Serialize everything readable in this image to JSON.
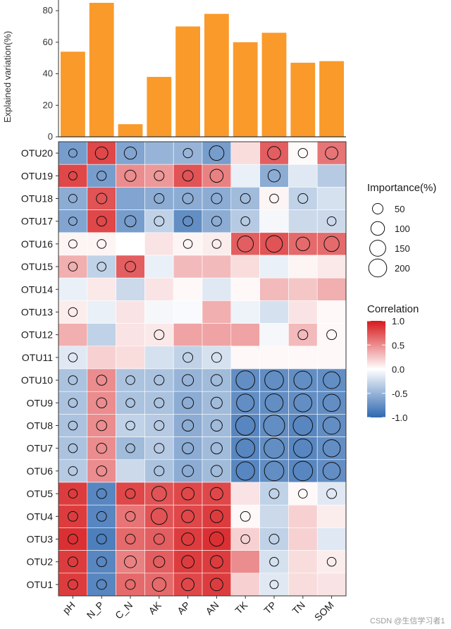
{
  "chart_data": [
    {
      "type": "bar",
      "ylabel": "Explained variation(%)",
      "ylim": [
        0,
        85
      ],
      "yticks": [
        "0",
        "20",
        "40",
        "60",
        "80"
      ],
      "categories": [
        "pH",
        "N_P",
        "C_N",
        "AK",
        "AP",
        "AN",
        "TK",
        "TP",
        "TN",
        "SOM"
      ],
      "values": [
        54,
        85,
        8,
        38,
        70,
        78,
        60,
        66,
        47,
        48
      ],
      "color": "#FA9A2A"
    },
    {
      "type": "heatmap",
      "columns": [
        "pH",
        "N_P",
        "C_N",
        "AK",
        "AP",
        "AN",
        "TK",
        "TP",
        "TN",
        "SOM"
      ],
      "rows": [
        "OTU20",
        "OTU19",
        "OTU18",
        "OTU17",
        "OTU16",
        "OTU15",
        "OTU14",
        "OTU13",
        "OTU12",
        "OTU11",
        "OTU10",
        "OTU9",
        "OTU8",
        "OTU7",
        "OTU6",
        "OTU5",
        "OTU4",
        "OTU3",
        "OTU2",
        "OTU1"
      ],
      "correlation": [
        [
          -0.65,
          0.8,
          -0.6,
          -0.5,
          -0.5,
          -0.65,
          0.15,
          0.7,
          0.02,
          0.6
        ],
        [
          0.8,
          -0.65,
          0.5,
          0.45,
          0.75,
          0.55,
          -0.1,
          -0.55,
          -0.15,
          -0.35
        ],
        [
          -0.55,
          0.75,
          -0.6,
          -0.55,
          -0.55,
          -0.55,
          -0.45,
          0.05,
          -0.3,
          -0.2
        ],
        [
          -0.6,
          0.8,
          -0.65,
          -0.3,
          -0.75,
          -0.55,
          -0.35,
          -0.05,
          -0.25,
          -0.25
        ],
        [
          0.05,
          0.05,
          0.0,
          0.12,
          0.05,
          0.08,
          0.7,
          0.75,
          0.65,
          0.65
        ],
        [
          0.35,
          -0.3,
          0.7,
          -0.1,
          0.3,
          0.3,
          0.15,
          -0.1,
          0.05,
          0.1
        ],
        [
          -0.1,
          0.1,
          -0.25,
          0.12,
          0.03,
          -0.15,
          0.03,
          0.3,
          0.25,
          0.35
        ],
        [
          0.08,
          -0.1,
          0.12,
          -0.05,
          -0.03,
          0.35,
          -0.08,
          -0.2,
          0.12,
          0.03
        ],
        [
          0.35,
          -0.3,
          0.12,
          0.1,
          0.4,
          0.4,
          0.4,
          -0.05,
          0.3,
          0.03
        ],
        [
          -0.15,
          0.2,
          0.15,
          -0.2,
          -0.3,
          -0.2,
          0.03,
          0.03,
          0.03,
          0.03
        ],
        [
          -0.4,
          0.5,
          -0.4,
          -0.4,
          -0.5,
          -0.45,
          -0.75,
          -0.75,
          -0.75,
          -0.75
        ],
        [
          -0.4,
          0.5,
          -0.4,
          -0.4,
          -0.55,
          -0.45,
          -0.75,
          -0.75,
          -0.75,
          -0.75
        ],
        [
          -0.4,
          0.5,
          -0.3,
          -0.35,
          -0.55,
          -0.45,
          -0.8,
          -0.75,
          -0.8,
          -0.75
        ],
        [
          -0.4,
          0.5,
          -0.45,
          -0.35,
          -0.55,
          -0.45,
          -0.8,
          -0.75,
          -0.8,
          -0.75
        ],
        [
          -0.35,
          0.5,
          -0.25,
          -0.4,
          -0.55,
          -0.45,
          -0.8,
          -0.75,
          -0.8,
          -0.75
        ],
        [
          0.85,
          -0.8,
          0.8,
          0.75,
          0.8,
          0.8,
          0.12,
          -0.3,
          0.03,
          -0.15
        ],
        [
          0.85,
          -0.8,
          0.6,
          0.75,
          0.8,
          0.85,
          0.03,
          -0.25,
          0.2,
          0.08
        ],
        [
          0.9,
          -0.85,
          0.65,
          0.7,
          0.85,
          0.9,
          0.2,
          -0.3,
          0.2,
          -0.15
        ],
        [
          0.85,
          -0.8,
          0.55,
          0.7,
          0.85,
          0.85,
          0.5,
          -0.2,
          0.15,
          0.08
        ],
        [
          0.85,
          -0.8,
          0.65,
          0.65,
          0.8,
          0.85,
          0.2,
          -0.15,
          0.15,
          0.12
        ]
      ],
      "importance": [
        [
          25,
          80,
          75,
          0,
          35,
          120,
          0,
          90,
          35,
          80
        ],
        [
          25,
          35,
          60,
          40,
          50,
          90,
          0,
          75,
          0,
          0
        ],
        [
          25,
          50,
          0,
          40,
          50,
          50,
          40,
          30,
          40,
          0
        ],
        [
          25,
          40,
          60,
          40,
          40,
          40,
          30,
          0,
          0,
          30
        ],
        [
          25,
          30,
          0,
          0,
          30,
          30,
          150,
          165,
          100,
          130
        ],
        [
          30,
          30,
          50,
          0,
          0,
          0,
          0,
          0,
          0,
          0
        ],
        [
          0,
          0,
          0,
          0,
          0,
          0,
          0,
          0,
          0,
          0
        ],
        [
          30,
          0,
          0,
          0,
          0,
          0,
          0,
          0,
          0,
          0
        ],
        [
          0,
          0,
          0,
          40,
          0,
          0,
          0,
          0,
          40,
          40
        ],
        [
          30,
          0,
          0,
          0,
          40,
          40,
          0,
          0,
          0,
          0
        ],
        [
          30,
          45,
          30,
          40,
          60,
          60,
          220,
          220,
          200,
          170
        ],
        [
          30,
          45,
          30,
          40,
          60,
          60,
          190,
          200,
          200,
          180
        ],
        [
          30,
          45,
          30,
          40,
          60,
          60,
          240,
          290,
          240,
          180
        ],
        [
          30,
          45,
          30,
          40,
          60,
          60,
          220,
          260,
          220,
          180
        ],
        [
          30,
          45,
          0,
          40,
          60,
          60,
          210,
          240,
          240,
          180
        ],
        [
          30,
          40,
          40,
          120,
          80,
          80,
          0,
          40,
          30,
          40
        ],
        [
          40,
          40,
          40,
          150,
          80,
          80,
          40,
          0,
          0,
          0
        ],
        [
          40,
          40,
          40,
          50,
          80,
          110,
          30,
          40,
          0,
          0
        ],
        [
          40,
          40,
          70,
          60,
          80,
          80,
          0,
          30,
          0,
          30
        ],
        [
          40,
          40,
          40,
          100,
          80,
          80,
          0,
          25,
          0,
          0
        ]
      ],
      "legend_importance": {
        "title": "Importance(%)",
        "values": [
          50,
          100,
          150,
          200
        ],
        "labels": [
          "50",
          "100",
          "150",
          "200"
        ]
      },
      "legend_correlation": {
        "title": "Correlation",
        "range": [
          -1,
          1
        ],
        "labels": [
          "1.0",
          "0.5",
          "0.0",
          "-0.5",
          "-1.0"
        ],
        "label_values": [
          1.0,
          0.5,
          0.0,
          -0.5,
          -1.0
        ],
        "colors": {
          "low": "#2E68B0",
          "mid": "#FFFFFF",
          "high": "#D7191C"
        }
      }
    }
  ],
  "watermark": "CSDN @生信学习者1"
}
